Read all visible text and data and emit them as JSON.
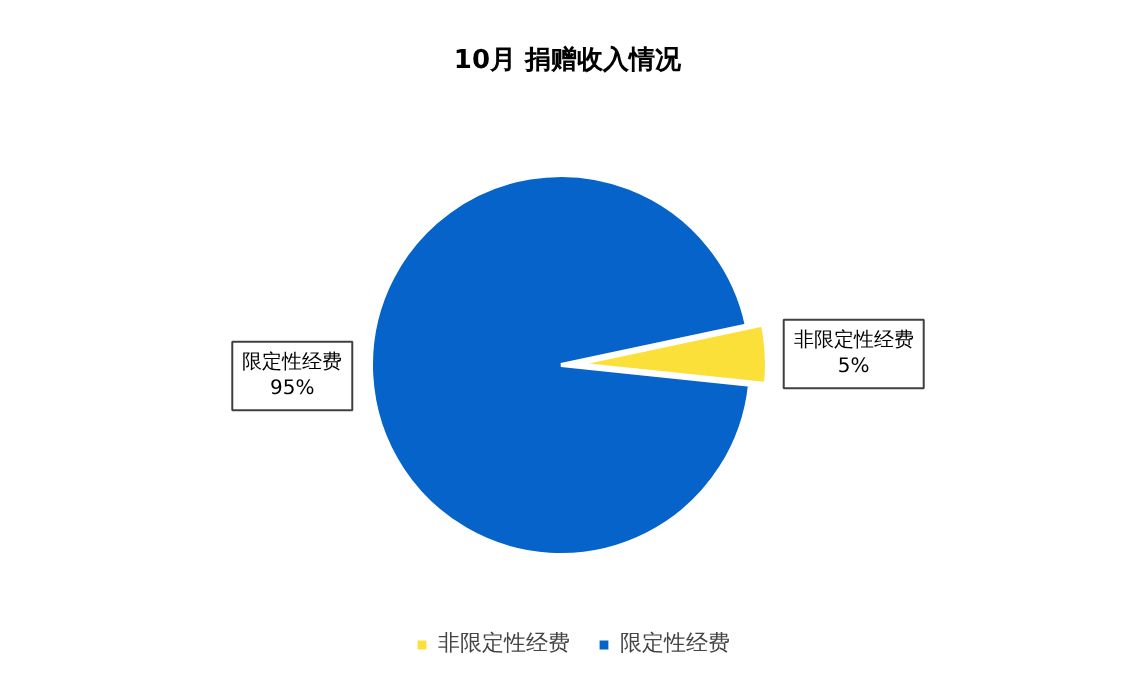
{
  "chart_data": {
    "type": "pie",
    "title": "10月  捐赠收入情况",
    "categories": [
      "非限定性经费",
      "限定性经费"
    ],
    "values": [
      5,
      95
    ],
    "colors": [
      "#fce03a",
      "#0563c9"
    ],
    "data_labels": true,
    "value_labels": [
      "5%",
      "95%"
    ],
    "legend": "bottom"
  }
}
